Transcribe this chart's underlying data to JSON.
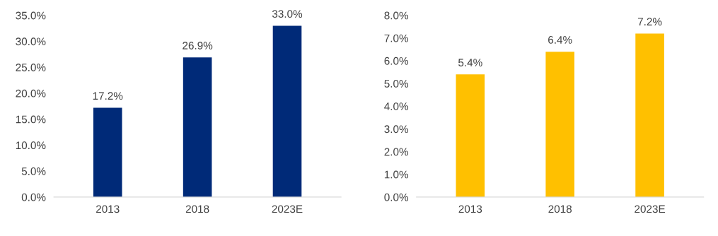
{
  "chart_data": [
    {
      "type": "bar",
      "categories": [
        "2013",
        "2018",
        "2023E"
      ],
      "values": [
        17.2,
        26.9,
        33.0
      ],
      "color": "#002a78",
      "value_labels": [
        "17.2%",
        "26.9%",
        "33.0%"
      ],
      "ylim": [
        0,
        35
      ],
      "yticks": [
        {
          "value": 0,
          "label": "0.0%"
        },
        {
          "value": 5,
          "label": "5.0%"
        },
        {
          "value": 10,
          "label": "10.0%"
        },
        {
          "value": 15,
          "label": "15.0%"
        },
        {
          "value": 20,
          "label": "20.0%"
        },
        {
          "value": 25,
          "label": "25.0%"
        },
        {
          "value": 30,
          "label": "30.0%"
        },
        {
          "value": 35,
          "label": "35.0%"
        }
      ],
      "grid": false,
      "legend": false
    },
    {
      "type": "bar",
      "categories": [
        "2013",
        "2018",
        "2023E"
      ],
      "values": [
        5.4,
        6.4,
        7.2
      ],
      "color": "#ffc000",
      "value_labels": [
        "5.4%",
        "6.4%",
        "7.2%"
      ],
      "ylim": [
        0,
        8
      ],
      "yticks": [
        {
          "value": 0,
          "label": "0.0%"
        },
        {
          "value": 1,
          "label": "1.0%"
        },
        {
          "value": 2,
          "label": "2.0%"
        },
        {
          "value": 3,
          "label": "3.0%"
        },
        {
          "value": 4,
          "label": "4.0%"
        },
        {
          "value": 5,
          "label": "5.0%"
        },
        {
          "value": 6,
          "label": "6.0%"
        },
        {
          "value": 7,
          "label": "7.0%"
        },
        {
          "value": 8,
          "label": "8.0%"
        }
      ],
      "grid": false,
      "legend": false
    }
  ]
}
